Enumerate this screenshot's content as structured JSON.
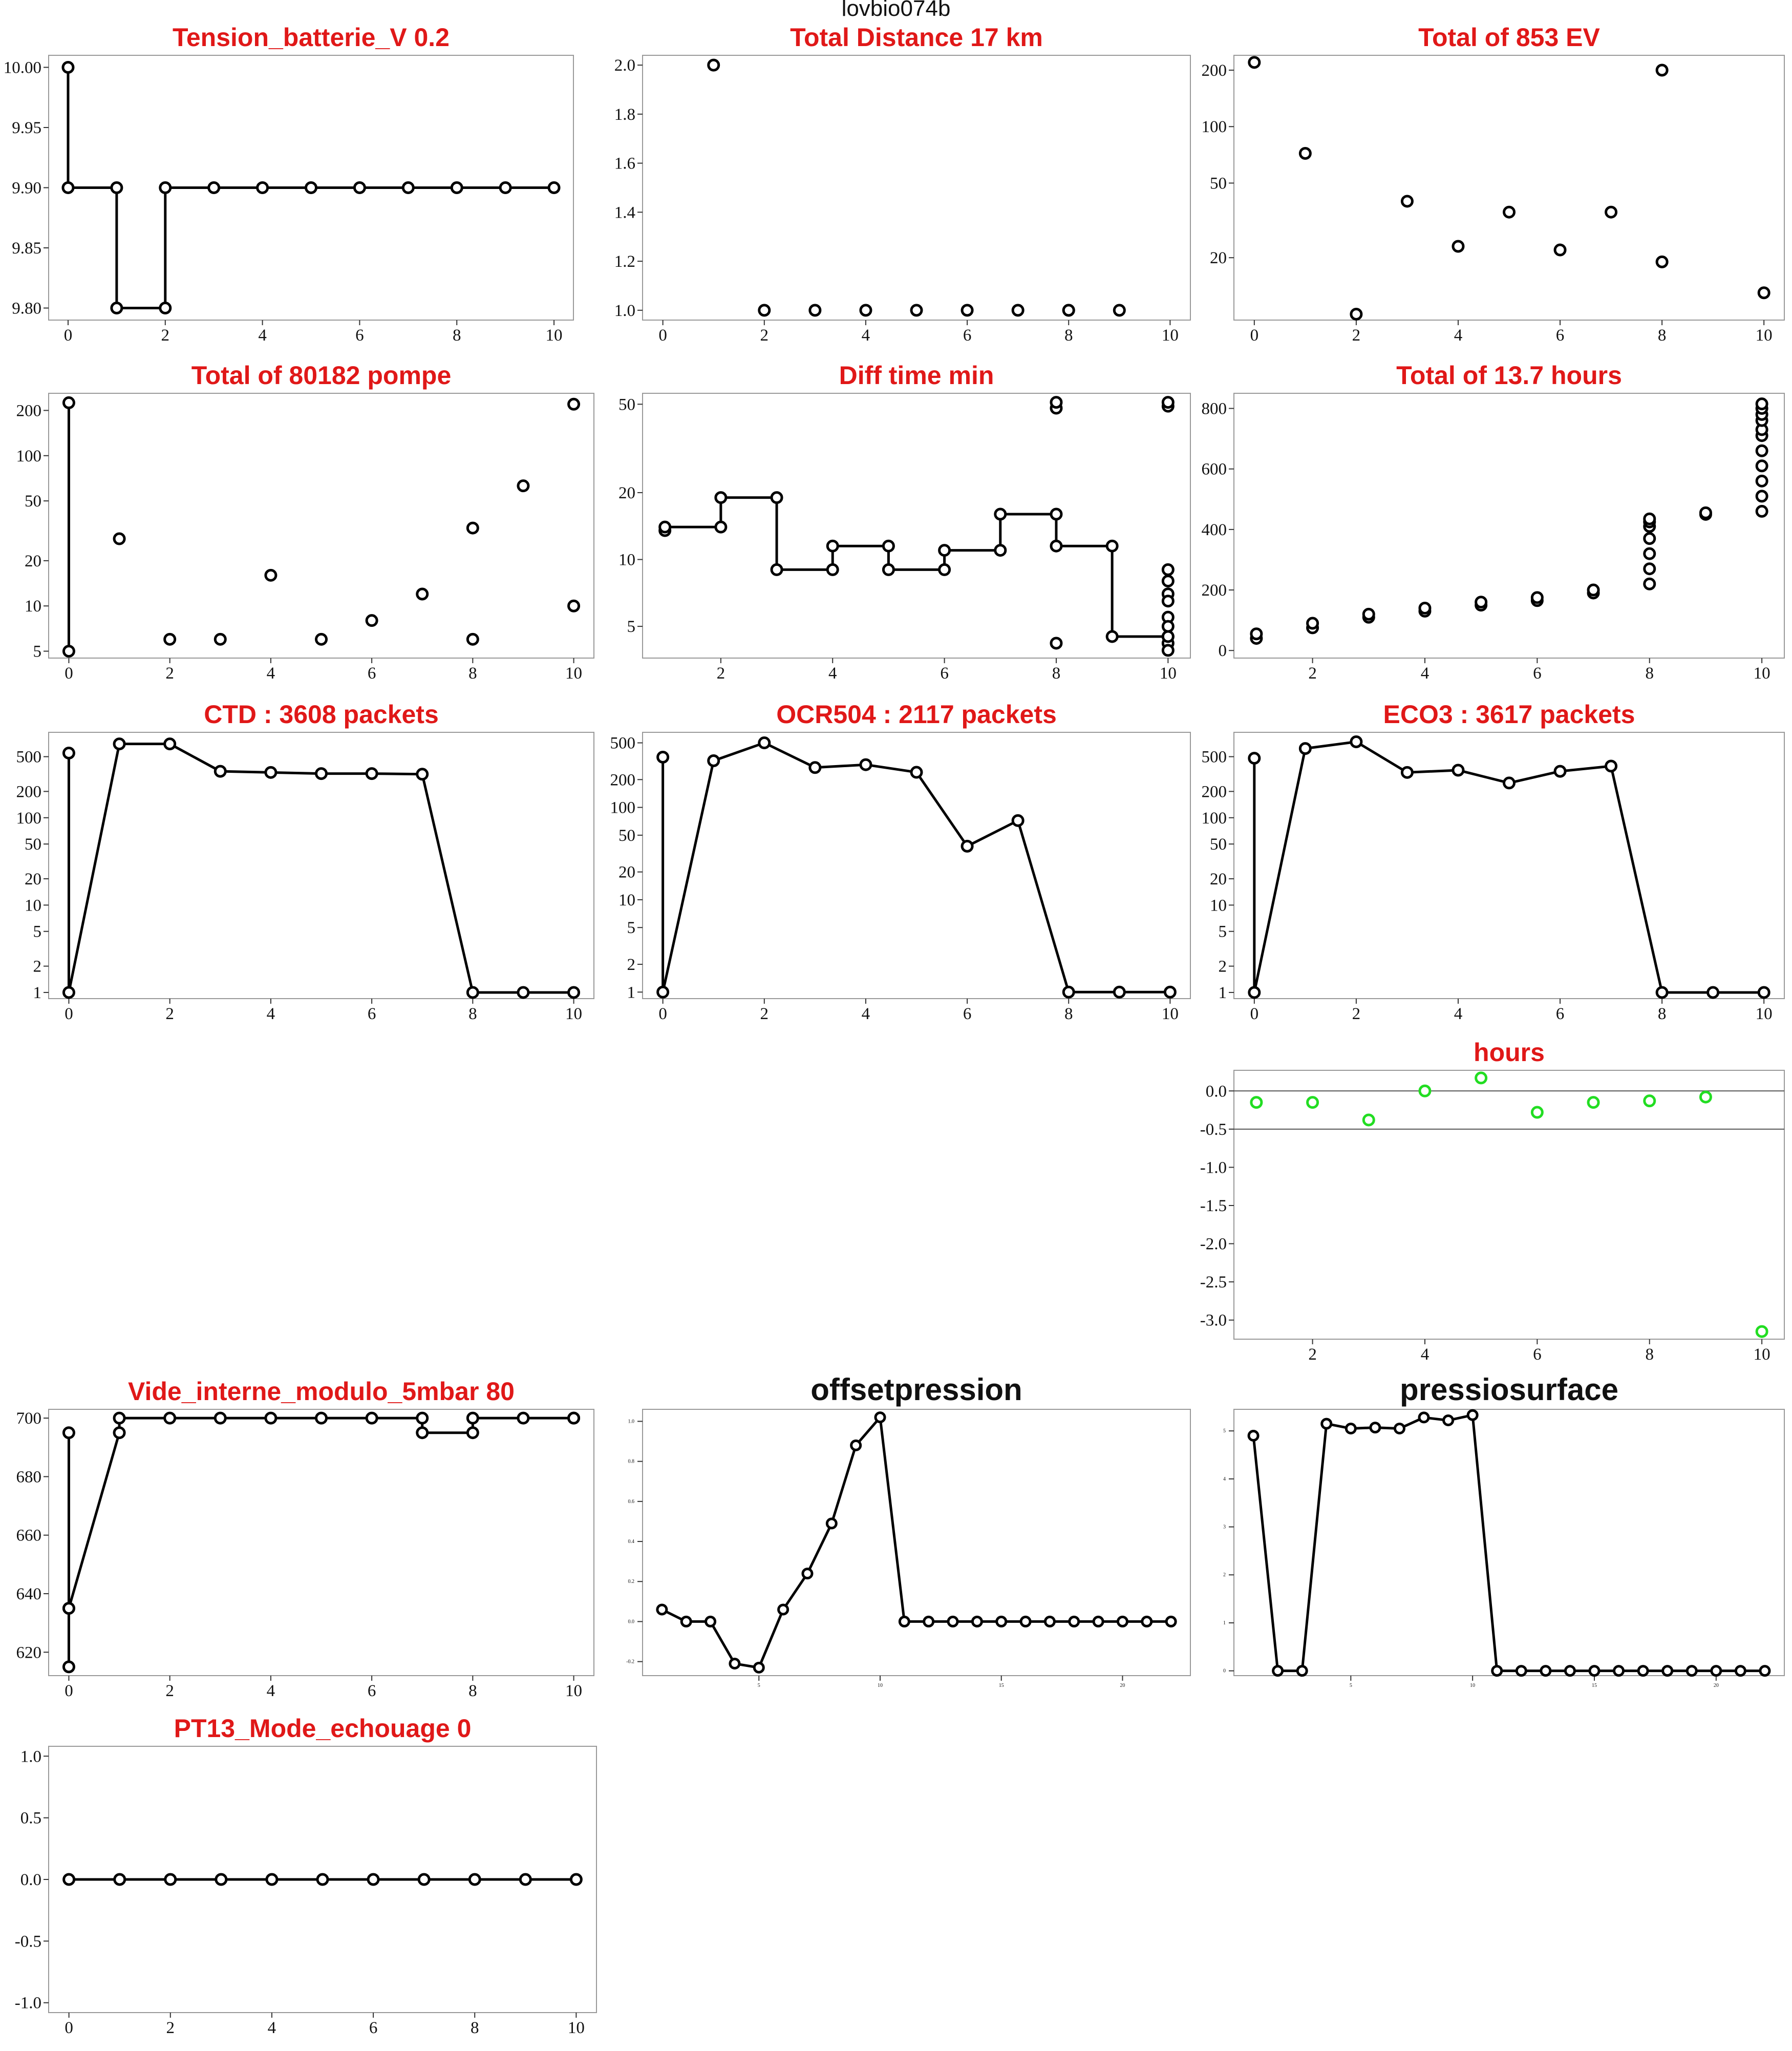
{
  "suptitle": "lovbio074b",
  "chart_data": [
    {
      "id": "p1",
      "type": "line",
      "title": "Tension_batterie_V 0.2",
      "xticks": [
        0,
        2,
        4,
        6,
        8,
        10
      ],
      "yticks": [
        "9.80",
        "9.85",
        "9.90",
        "9.95",
        "10.00"
      ],
      "xlim": [
        -0.4,
        10.4
      ],
      "ylim": [
        9.79,
        10.01
      ],
      "step": true,
      "x": [
        0,
        0,
        1,
        1,
        2,
        2,
        3,
        4,
        5,
        6,
        7,
        8,
        9,
        10
      ],
      "y": [
        10.0,
        9.9,
        9.9,
        9.8,
        9.8,
        9.9,
        9.9,
        9.9,
        9.9,
        9.9,
        9.9,
        9.9,
        9.9,
        9.9
      ]
    },
    {
      "id": "p2",
      "type": "scatter",
      "title": "Total Distance  17  km",
      "xticks": [
        0,
        2,
        4,
        6,
        8,
        10
      ],
      "yticks": [
        "1.0",
        "1.2",
        "1.4",
        "1.6",
        "1.8",
        "2.0"
      ],
      "xlim": [
        -0.4,
        10.4
      ],
      "ylim": [
        0.96,
        2.04
      ],
      "x": [
        1,
        2,
        3,
        4,
        5,
        6,
        7,
        8,
        8,
        9
      ],
      "y": [
        2.0,
        1.0,
        1.0,
        1.0,
        1.0,
        1.0,
        1.0,
        1.0,
        1.0,
        1.0
      ]
    },
    {
      "id": "p3",
      "type": "scatter",
      "title": "Total of  853  EV",
      "ylog": true,
      "xticks": [
        0,
        2,
        4,
        6,
        8,
        10
      ],
      "yticks": [
        "20",
        "50",
        "100",
        "200"
      ],
      "xlim": [
        -0.4,
        10.4
      ],
      "ylim": [
        9.3,
        240
      ],
      "x": [
        0,
        1,
        2,
        3,
        4,
        5,
        6,
        7,
        8,
        8,
        10
      ],
      "y": [
        220,
        72,
        10,
        40,
        23,
        35,
        22,
        35,
        19,
        200,
        13
      ]
    },
    {
      "id": "p4",
      "type": "scatter",
      "title": "Total of  80182  pompe",
      "ylog": true,
      "xticks": [
        0,
        2,
        4,
        6,
        8,
        10
      ],
      "yticks": [
        "5",
        "10",
        "20",
        "50",
        "100",
        "200"
      ],
      "xlim": [
        -0.4,
        10.4
      ],
      "ylim": [
        4.5,
        260
      ],
      "x": [
        0,
        0,
        1,
        2,
        3,
        4,
        5,
        6,
        7,
        8,
        8,
        9,
        10,
        10
      ],
      "y": [
        225,
        5,
        28,
        6,
        6,
        16,
        6,
        8,
        12,
        6,
        33,
        63,
        10,
        220
      ],
      "line_x": [
        0,
        0
      ],
      "line_y": [
        225,
        5
      ]
    },
    {
      "id": "p5",
      "type": "line",
      "title": "Diff time min",
      "ylog": true,
      "step": true,
      "xticks": [
        2,
        4,
        6,
        8,
        10
      ],
      "yticks": [
        "5",
        "10",
        "20",
        "50"
      ],
      "xlim": [
        0.6,
        10.4
      ],
      "ylim": [
        3.6,
        56
      ],
      "x": [
        1,
        1,
        2,
        2,
        3,
        3,
        4,
        4,
        5,
        5,
        6,
        6,
        7,
        7,
        8,
        8,
        9,
        9,
        10,
        10
      ],
      "y": [
        13.5,
        14,
        14,
        19,
        19,
        9,
        9,
        11.5,
        11.5,
        9,
        9,
        11,
        11,
        16,
        16,
        11.5,
        11.5,
        4.5,
        4.5,
        4.2
      ],
      "extra_x": [
        8,
        8,
        8,
        10,
        10,
        10,
        10,
        10,
        10,
        10,
        10,
        10,
        10
      ],
      "extra_y": [
        4.2,
        48,
        51,
        49,
        51,
        9,
        8,
        7,
        6.5,
        5.5,
        5,
        4.5,
        3.9
      ]
    },
    {
      "id": "p6",
      "type": "scatter",
      "title": "Total of  13.7  hours",
      "xticks": [
        2,
        4,
        6,
        8,
        10
      ],
      "yticks": [
        "0",
        "200",
        "400",
        "600",
        "800"
      ],
      "xlim": [
        0.6,
        10.4
      ],
      "ylim": [
        -25,
        850
      ],
      "x": [
        1,
        1,
        2,
        2,
        3,
        3,
        4,
        4,
        5,
        5,
        6,
        6,
        7,
        7,
        8,
        8,
        8,
        8,
        8,
        8,
        8,
        9,
        9,
        10,
        10,
        10,
        10,
        10,
        10,
        10,
        10,
        10,
        10,
        10
      ],
      "y": [
        40,
        55,
        75,
        90,
        110,
        120,
        130,
        140,
        150,
        160,
        165,
        175,
        190,
        200,
        220,
        270,
        320,
        370,
        410,
        425,
        435,
        450,
        455,
        460,
        510,
        560,
        610,
        660,
        710,
        730,
        760,
        780,
        800,
        815
      ]
    },
    {
      "id": "p7",
      "type": "line",
      "title": "CTD  : 3608  packets",
      "ylog": true,
      "xticks": [
        0,
        2,
        4,
        6,
        8,
        10
      ],
      "yticks": [
        "1",
        "2",
        "5",
        "10",
        "20",
        "50",
        "100",
        "200",
        "500"
      ],
      "xlim": [
        -0.4,
        10.4
      ],
      "ylim": [
        0.85,
        950
      ],
      "x": [
        0,
        0,
        1,
        2,
        3,
        4,
        5,
        6,
        7,
        8,
        9,
        10
      ],
      "y": [
        550,
        1,
        700,
        700,
        340,
        330,
        320,
        320,
        315,
        1,
        1,
        1
      ]
    },
    {
      "id": "p8",
      "type": "line",
      "title": "OCR504  : 2117  packets",
      "ylog": true,
      "xticks": [
        0,
        2,
        4,
        6,
        8,
        10
      ],
      "yticks": [
        "1",
        "2",
        "5",
        "10",
        "20",
        "50",
        "100",
        "200",
        "500"
      ],
      "xlim": [
        -0.4,
        10.4
      ],
      "ylim": [
        0.85,
        650
      ],
      "x": [
        0,
        0,
        1,
        2,
        3,
        4,
        5,
        6,
        7,
        8,
        9,
        10
      ],
      "y": [
        350,
        1,
        320,
        500,
        270,
        290,
        240,
        38,
        72,
        1,
        1,
        1
      ]
    },
    {
      "id": "p9",
      "type": "line",
      "title": "ECO3  : 3617  packets",
      "ylog": true,
      "xticks": [
        0,
        2,
        4,
        6,
        8,
        10
      ],
      "yticks": [
        "1",
        "2",
        "5",
        "10",
        "20",
        "50",
        "100",
        "200",
        "500"
      ],
      "xlim": [
        -0.4,
        10.4
      ],
      "ylim": [
        0.85,
        950
      ],
      "x": [
        0,
        0,
        1,
        2,
        3,
        4,
        5,
        6,
        7,
        8,
        9,
        10
      ],
      "y": [
        480,
        1,
        620,
        740,
        330,
        350,
        250,
        340,
        390,
        1,
        1,
        1
      ]
    },
    {
      "id": "p10",
      "type": "scatter",
      "title": "hours",
      "color": "#22dd22",
      "xticks": [
        2,
        4,
        6,
        8,
        10
      ],
      "yticks": [
        "-3.0",
        "-2.5",
        "-2.0",
        "-1.5",
        "-1.0",
        "-0.5",
        "0.0"
      ],
      "xlim": [
        0.6,
        10.4
      ],
      "ylim": [
        -3.25,
        0.27
      ],
      "hlines": [
        0,
        -0.5
      ],
      "x": [
        1,
        2,
        3,
        4,
        5,
        6,
        7,
        8,
        9,
        10
      ],
      "y": [
        -0.15,
        -0.15,
        -0.38,
        0.0,
        0.17,
        -0.28,
        -0.15,
        -0.13,
        -0.08,
        -3.15
      ]
    },
    {
      "id": "p11",
      "type": "line",
      "title": "Vide_interne_modulo_5mbar 80",
      "xticks": [
        0,
        2,
        4,
        6,
        8,
        10
      ],
      "yticks": [
        "620",
        "640",
        "660",
        "680",
        "700"
      ],
      "xlim": [
        -0.4,
        10.4
      ],
      "ylim": [
        612,
        703
      ],
      "x": [
        0,
        0,
        0,
        1,
        1,
        2,
        3,
        4,
        5,
        6,
        7,
        7,
        8,
        8,
        9,
        10
      ],
      "y": [
        695,
        615,
        635,
        695,
        700,
        700,
        700,
        700,
        700,
        700,
        700,
        695,
        695,
        700,
        700,
        700
      ],
      "extra_x": [
        0,
        10
      ],
      "extra_y": [
        635,
        700
      ]
    },
    {
      "id": "p12",
      "type": "line",
      "title": "offsetpression",
      "small_ticks": true,
      "xticks": [
        "5",
        "10",
        "15",
        "20"
      ],
      "xtick_vals": [
        5,
        10,
        15,
        20
      ],
      "yticks": [
        "-0.2",
        "0.0",
        "0.2",
        "0.4",
        "0.6",
        "0.8",
        "1.0"
      ],
      "xlim": [
        0.2,
        22.8
      ],
      "ylim": [
        -0.27,
        1.06
      ],
      "x": [
        1,
        2,
        3,
        4,
        5,
        6,
        7,
        8,
        9,
        10,
        11,
        12,
        13,
        14,
        15,
        16,
        17,
        18,
        19,
        20,
        21,
        22
      ],
      "y": [
        0.06,
        0.0,
        0.0,
        -0.21,
        -0.23,
        0.06,
        0.24,
        0.49,
        0.88,
        1.02,
        0.0,
        0.0,
        0.0,
        0.0,
        0.0,
        0.0,
        0.0,
        0.0,
        0.0,
        0.0,
        0.0,
        0.0
      ]
    },
    {
      "id": "p13",
      "type": "line",
      "title": "pressiosurface",
      "small_ticks": true,
      "xticks": [
        "5",
        "10",
        "15",
        "20"
      ],
      "xtick_vals": [
        5,
        10,
        15,
        20
      ],
      "yticks": [
        "0",
        "1",
        "2",
        "3",
        "4",
        "5"
      ],
      "xlim": [
        0.2,
        22.8
      ],
      "ylim": [
        -0.1,
        5.45
      ],
      "x": [
        1,
        2,
        3,
        4,
        5,
        6,
        7,
        8,
        9,
        10,
        11,
        12,
        13,
        14,
        15,
        16,
        17,
        18,
        19,
        20,
        21,
        22
      ],
      "y": [
        4.9,
        0.0,
        0.0,
        5.15,
        5.05,
        5.07,
        5.05,
        5.28,
        5.22,
        5.33,
        0.0,
        0.0,
        0.0,
        0.0,
        0.0,
        0.0,
        0.0,
        0.0,
        0.0,
        0.0,
        0.0,
        0.0
      ]
    },
    {
      "id": "p14",
      "type": "line",
      "title": "PT13_Mode_echouage  0",
      "xticks": [
        0,
        2,
        4,
        6,
        8,
        10
      ],
      "yticks": [
        "-1.0",
        "-0.5",
        "0.0",
        "0.5",
        "1.0"
      ],
      "xlim": [
        -0.4,
        10.4
      ],
      "ylim": [
        -1.08,
        1.08
      ],
      "x": [
        0,
        1,
        2,
        3,
        4,
        5,
        6,
        7,
        8,
        9,
        10
      ],
      "y": [
        0,
        0,
        0,
        0,
        0,
        0,
        0,
        0,
        0,
        0,
        0
      ]
    }
  ]
}
